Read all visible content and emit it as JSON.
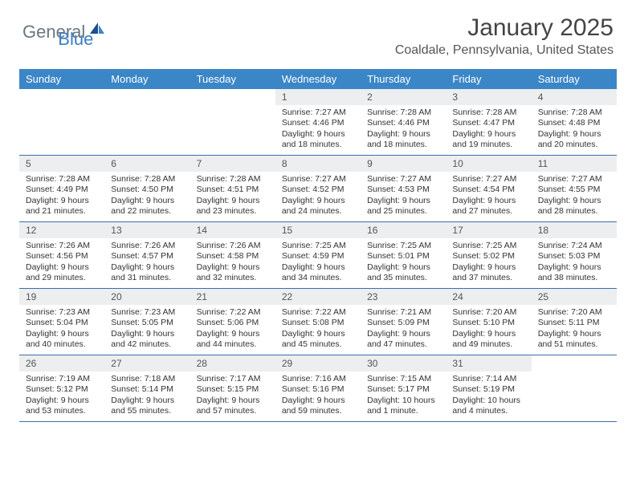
{
  "logo": {
    "textGeneral": "General",
    "textBlue": "Blue"
  },
  "title": "January 2025",
  "location": "Coaldale, Pennsylvania, United States",
  "dayHeaders": [
    "Sunday",
    "Monday",
    "Tuesday",
    "Wednesday",
    "Thursday",
    "Friday",
    "Saturday"
  ],
  "colors": {
    "headerBg": "#3b86c7",
    "headerText": "#ffffff",
    "dayNumBg": "#eceeef",
    "rowBorder": "#3b6fa8",
    "logoGray": "#6b7680",
    "logoBlue": "#3b7fc4"
  },
  "weeks": [
    [
      {
        "num": "",
        "sunrise": "",
        "sunset": "",
        "daylight": ""
      },
      {
        "num": "",
        "sunrise": "",
        "sunset": "",
        "daylight": ""
      },
      {
        "num": "",
        "sunrise": "",
        "sunset": "",
        "daylight": ""
      },
      {
        "num": "1",
        "sunrise": "Sunrise: 7:27 AM",
        "sunset": "Sunset: 4:46 PM",
        "daylight": "Daylight: 9 hours and 18 minutes."
      },
      {
        "num": "2",
        "sunrise": "Sunrise: 7:28 AM",
        "sunset": "Sunset: 4:46 PM",
        "daylight": "Daylight: 9 hours and 18 minutes."
      },
      {
        "num": "3",
        "sunrise": "Sunrise: 7:28 AM",
        "sunset": "Sunset: 4:47 PM",
        "daylight": "Daylight: 9 hours and 19 minutes."
      },
      {
        "num": "4",
        "sunrise": "Sunrise: 7:28 AM",
        "sunset": "Sunset: 4:48 PM",
        "daylight": "Daylight: 9 hours and 20 minutes."
      }
    ],
    [
      {
        "num": "5",
        "sunrise": "Sunrise: 7:28 AM",
        "sunset": "Sunset: 4:49 PM",
        "daylight": "Daylight: 9 hours and 21 minutes."
      },
      {
        "num": "6",
        "sunrise": "Sunrise: 7:28 AM",
        "sunset": "Sunset: 4:50 PM",
        "daylight": "Daylight: 9 hours and 22 minutes."
      },
      {
        "num": "7",
        "sunrise": "Sunrise: 7:28 AM",
        "sunset": "Sunset: 4:51 PM",
        "daylight": "Daylight: 9 hours and 23 minutes."
      },
      {
        "num": "8",
        "sunrise": "Sunrise: 7:27 AM",
        "sunset": "Sunset: 4:52 PM",
        "daylight": "Daylight: 9 hours and 24 minutes."
      },
      {
        "num": "9",
        "sunrise": "Sunrise: 7:27 AM",
        "sunset": "Sunset: 4:53 PM",
        "daylight": "Daylight: 9 hours and 25 minutes."
      },
      {
        "num": "10",
        "sunrise": "Sunrise: 7:27 AM",
        "sunset": "Sunset: 4:54 PM",
        "daylight": "Daylight: 9 hours and 27 minutes."
      },
      {
        "num": "11",
        "sunrise": "Sunrise: 7:27 AM",
        "sunset": "Sunset: 4:55 PM",
        "daylight": "Daylight: 9 hours and 28 minutes."
      }
    ],
    [
      {
        "num": "12",
        "sunrise": "Sunrise: 7:26 AM",
        "sunset": "Sunset: 4:56 PM",
        "daylight": "Daylight: 9 hours and 29 minutes."
      },
      {
        "num": "13",
        "sunrise": "Sunrise: 7:26 AM",
        "sunset": "Sunset: 4:57 PM",
        "daylight": "Daylight: 9 hours and 31 minutes."
      },
      {
        "num": "14",
        "sunrise": "Sunrise: 7:26 AM",
        "sunset": "Sunset: 4:58 PM",
        "daylight": "Daylight: 9 hours and 32 minutes."
      },
      {
        "num": "15",
        "sunrise": "Sunrise: 7:25 AM",
        "sunset": "Sunset: 4:59 PM",
        "daylight": "Daylight: 9 hours and 34 minutes."
      },
      {
        "num": "16",
        "sunrise": "Sunrise: 7:25 AM",
        "sunset": "Sunset: 5:01 PM",
        "daylight": "Daylight: 9 hours and 35 minutes."
      },
      {
        "num": "17",
        "sunrise": "Sunrise: 7:25 AM",
        "sunset": "Sunset: 5:02 PM",
        "daylight": "Daylight: 9 hours and 37 minutes."
      },
      {
        "num": "18",
        "sunrise": "Sunrise: 7:24 AM",
        "sunset": "Sunset: 5:03 PM",
        "daylight": "Daylight: 9 hours and 38 minutes."
      }
    ],
    [
      {
        "num": "19",
        "sunrise": "Sunrise: 7:23 AM",
        "sunset": "Sunset: 5:04 PM",
        "daylight": "Daylight: 9 hours and 40 minutes."
      },
      {
        "num": "20",
        "sunrise": "Sunrise: 7:23 AM",
        "sunset": "Sunset: 5:05 PM",
        "daylight": "Daylight: 9 hours and 42 minutes."
      },
      {
        "num": "21",
        "sunrise": "Sunrise: 7:22 AM",
        "sunset": "Sunset: 5:06 PM",
        "daylight": "Daylight: 9 hours and 44 minutes."
      },
      {
        "num": "22",
        "sunrise": "Sunrise: 7:22 AM",
        "sunset": "Sunset: 5:08 PM",
        "daylight": "Daylight: 9 hours and 45 minutes."
      },
      {
        "num": "23",
        "sunrise": "Sunrise: 7:21 AM",
        "sunset": "Sunset: 5:09 PM",
        "daylight": "Daylight: 9 hours and 47 minutes."
      },
      {
        "num": "24",
        "sunrise": "Sunrise: 7:20 AM",
        "sunset": "Sunset: 5:10 PM",
        "daylight": "Daylight: 9 hours and 49 minutes."
      },
      {
        "num": "25",
        "sunrise": "Sunrise: 7:20 AM",
        "sunset": "Sunset: 5:11 PM",
        "daylight": "Daylight: 9 hours and 51 minutes."
      }
    ],
    [
      {
        "num": "26",
        "sunrise": "Sunrise: 7:19 AM",
        "sunset": "Sunset: 5:12 PM",
        "daylight": "Daylight: 9 hours and 53 minutes."
      },
      {
        "num": "27",
        "sunrise": "Sunrise: 7:18 AM",
        "sunset": "Sunset: 5:14 PM",
        "daylight": "Daylight: 9 hours and 55 minutes."
      },
      {
        "num": "28",
        "sunrise": "Sunrise: 7:17 AM",
        "sunset": "Sunset: 5:15 PM",
        "daylight": "Daylight: 9 hours and 57 minutes."
      },
      {
        "num": "29",
        "sunrise": "Sunrise: 7:16 AM",
        "sunset": "Sunset: 5:16 PM",
        "daylight": "Daylight: 9 hours and 59 minutes."
      },
      {
        "num": "30",
        "sunrise": "Sunrise: 7:15 AM",
        "sunset": "Sunset: 5:17 PM",
        "daylight": "Daylight: 10 hours and 1 minute."
      },
      {
        "num": "31",
        "sunrise": "Sunrise: 7:14 AM",
        "sunset": "Sunset: 5:19 PM",
        "daylight": "Daylight: 10 hours and 4 minutes."
      },
      {
        "num": "",
        "sunrise": "",
        "sunset": "",
        "daylight": ""
      }
    ]
  ]
}
